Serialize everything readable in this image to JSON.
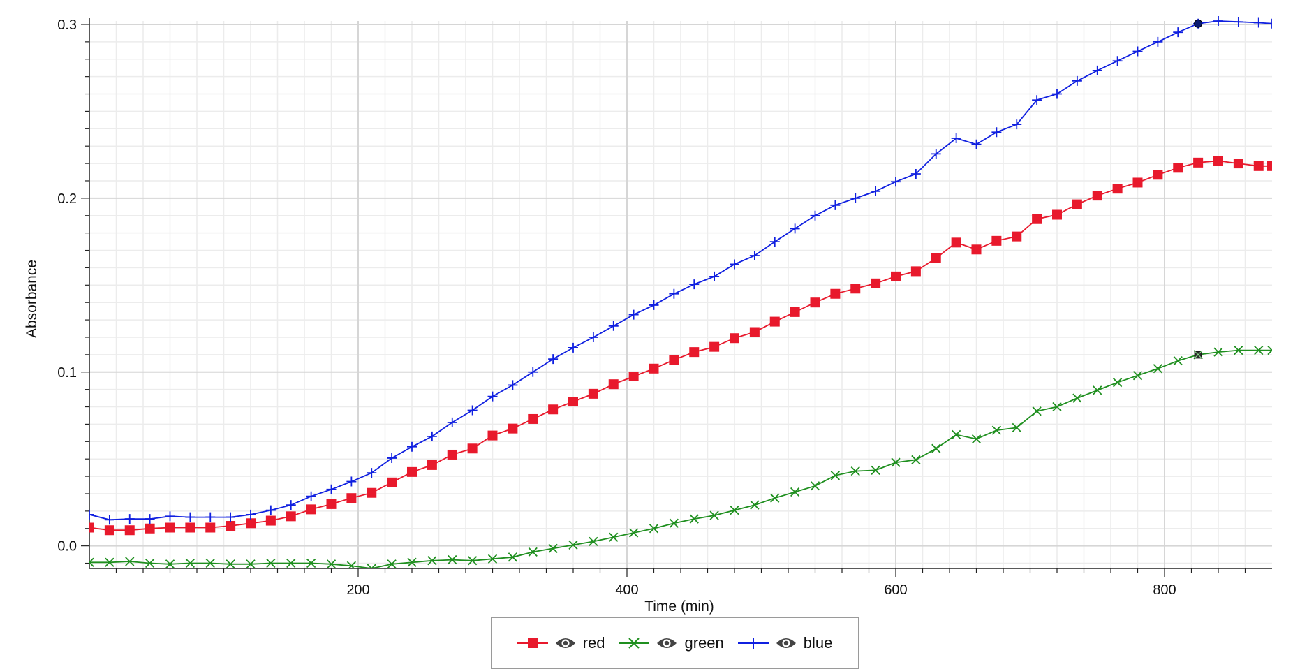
{
  "chart_data": {
    "type": "line",
    "title": "",
    "xlabel": "Time (min)",
    "ylabel": "Absorbance",
    "xlim": [
      0,
      880
    ],
    "ylim": [
      -0.013,
      0.302
    ],
    "xticks": [
      200,
      400,
      600,
      800
    ],
    "yticks": [
      0.0,
      0.1,
      0.2,
      0.3
    ],
    "xtick_labels": [
      "200",
      "400",
      "600",
      "800"
    ],
    "ytick_labels": [
      "0.0",
      "0.1",
      "0.2",
      "0.3"
    ],
    "grid": true,
    "legend_position": "bottom-center",
    "x": [
      0,
      15,
      30,
      45,
      60,
      75,
      90,
      105,
      120,
      135,
      150,
      165,
      180,
      195,
      210,
      225,
      240,
      255,
      270,
      285,
      300,
      315,
      330,
      345,
      360,
      375,
      390,
      405,
      420,
      435,
      450,
      465,
      480,
      495,
      510,
      525,
      540,
      555,
      570,
      585,
      600,
      615,
      630,
      645,
      660,
      675,
      690,
      705,
      720,
      735,
      750,
      765,
      780,
      795,
      810,
      825,
      840,
      855,
      870,
      880
    ],
    "series": [
      {
        "name": "red",
        "color": "#e8192c",
        "marker": "square",
        "values": [
          0.0105,
          0.009,
          0.009,
          0.01,
          0.0105,
          0.0105,
          0.0105,
          0.0115,
          0.013,
          0.0145,
          0.017,
          0.021,
          0.024,
          0.0275,
          0.0305,
          0.0365,
          0.0425,
          0.0465,
          0.0525,
          0.056,
          0.0635,
          0.0675,
          0.073,
          0.0785,
          0.083,
          0.0875,
          0.093,
          0.0975,
          0.102,
          0.107,
          0.1115,
          0.1145,
          0.1195,
          0.123,
          0.129,
          0.1345,
          0.14,
          0.145,
          0.148,
          0.151,
          0.155,
          0.158,
          0.1655,
          0.1745,
          0.1705,
          0.1755,
          0.178,
          0.188,
          0.1905,
          0.1965,
          0.2015,
          0.2055,
          0.209,
          0.2135,
          0.2175,
          0.2205,
          0.2215,
          0.22,
          0.2185,
          0.2185
        ]
      },
      {
        "name": "green",
        "color": "#1f8f1f",
        "marker": "x",
        "values": [
          -0.0095,
          -0.0095,
          -0.009,
          -0.01,
          -0.0105,
          -0.01,
          -0.01,
          -0.0105,
          -0.0105,
          -0.01,
          -0.01,
          -0.01,
          -0.0105,
          -0.0115,
          -0.013,
          -0.0105,
          -0.0095,
          -0.0085,
          -0.008,
          -0.0085,
          -0.0075,
          -0.0065,
          -0.0035,
          -0.0015,
          0.0005,
          0.0025,
          0.005,
          0.0075,
          0.01,
          0.013,
          0.0155,
          0.0175,
          0.0205,
          0.0235,
          0.0275,
          0.031,
          0.0345,
          0.0405,
          0.043,
          0.0435,
          0.048,
          0.0495,
          0.056,
          0.064,
          0.0615,
          0.0665,
          0.068,
          0.0775,
          0.08,
          0.085,
          0.0895,
          0.094,
          0.098,
          0.102,
          0.1065,
          0.11,
          0.1115,
          0.1125,
          0.1125,
          0.1125
        ]
      },
      {
        "name": "blue",
        "color": "#1020e0",
        "marker": "plus",
        "values": [
          0.018,
          0.015,
          0.0155,
          0.0155,
          0.017,
          0.0165,
          0.0165,
          0.0165,
          0.018,
          0.0205,
          0.0235,
          0.0285,
          0.0325,
          0.037,
          0.042,
          0.0505,
          0.057,
          0.063,
          0.071,
          0.078,
          0.086,
          0.0925,
          0.1,
          0.1075,
          0.114,
          0.12,
          0.1265,
          0.133,
          0.1385,
          0.145,
          0.1505,
          0.155,
          0.162,
          0.167,
          0.175,
          0.1825,
          0.19,
          0.196,
          0.2,
          0.204,
          0.2095,
          0.214,
          0.2255,
          0.2345,
          0.231,
          0.238,
          0.2425,
          0.2565,
          0.26,
          0.2675,
          0.2735,
          0.279,
          0.2845,
          0.29,
          0.2955,
          0.3005,
          0.302,
          0.3015,
          0.301,
          0.3005
        ]
      }
    ],
    "highlighted_points": [
      {
        "series": "blue",
        "x": 825,
        "y": 0.3005
      },
      {
        "series": "green",
        "x": 825,
        "y": 0.11
      }
    ]
  },
  "legend": {
    "items": [
      {
        "label": "red",
        "visibility_icon": "eye-icon"
      },
      {
        "label": "green",
        "visibility_icon": "eye-icon"
      },
      {
        "label": "blue",
        "visibility_icon": "eye-icon"
      }
    ]
  }
}
